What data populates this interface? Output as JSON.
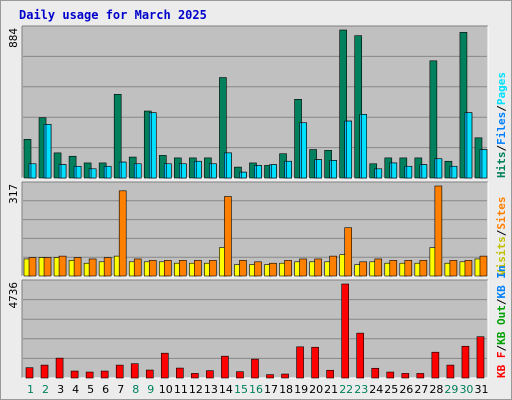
{
  "title": "Daily usage for March 2025",
  "colors": {
    "hits": "#00805c",
    "files": "#00c0ff",
    "pages": "#00e0ff",
    "visits": "#ffff00",
    "sites": "#ff8000",
    "kbin": "#0080ff",
    "kbout": "#00a000",
    "kbf": "#ff0000",
    "weekend": "#00805c",
    "weekday": "#000000",
    "panel_bg": "#c0c0c0"
  },
  "chart_data": [
    {
      "type": "bar",
      "panel": "top",
      "ymax_label": "884",
      "ylim": [
        0,
        884
      ],
      "categories": [
        "1",
        "2",
        "3",
        "4",
        "5",
        "6",
        "7",
        "8",
        "9",
        "10",
        "11",
        "12",
        "13",
        "14",
        "15",
        "16",
        "17",
        "18",
        "19",
        "20",
        "21",
        "22",
        "23",
        "24",
        "25",
        "26",
        "27",
        "28",
        "29",
        "30",
        "31"
      ],
      "weekend_days": [
        "1",
        "2",
        "8",
        "9",
        "15",
        "16",
        "22",
        "23",
        "29",
        "30"
      ],
      "legend": [
        {
          "text": "Hits",
          "color": "#00805c"
        },
        {
          "text": "/",
          "color": "#000000"
        },
        {
          "text": "Files",
          "color": "#0080ff"
        },
        {
          "text": "/",
          "color": "#000000"
        },
        {
          "text": "Pages",
          "color": "#00e0ff"
        }
      ],
      "series": [
        {
          "name": "Hits",
          "values": [
            231,
            360,
            150,
            130,
            90,
            90,
            500,
            125,
            400,
            135,
            120,
            120,
            120,
            600,
            65,
            90,
            75,
            145,
            470,
            170,
            165,
            884,
            850,
            85,
            120,
            120,
            120,
            700,
            100,
            870,
            240
          ]
        },
        {
          "name": "Files",
          "values": [
            85,
            320,
            80,
            70,
            55,
            70,
            95,
            85,
            390,
            85,
            85,
            100,
            85,
            150,
            35,
            75,
            80,
            100,
            330,
            110,
            105,
            340,
            380,
            55,
            90,
            70,
            80,
            115,
            70,
            390,
            170
          ]
        },
        {
          "name": "Pages",
          "values": [
            85,
            320,
            80,
            70,
            55,
            70,
            95,
            85,
            390,
            85,
            85,
            100,
            85,
            150,
            35,
            75,
            80,
            100,
            330,
            110,
            105,
            340,
            380,
            55,
            90,
            70,
            80,
            115,
            70,
            390,
            170
          ]
        }
      ]
    },
    {
      "type": "bar",
      "panel": "middle",
      "ymax_label": "317",
      "ylim": [
        0,
        317
      ],
      "legend": [
        {
          "text": "Visits",
          "color": "#c0c000"
        },
        {
          "text": "/",
          "color": "#000000"
        },
        {
          "text": "Sites",
          "color": "#ff8000"
        }
      ],
      "series": [
        {
          "name": "Visits",
          "values": [
            60,
            65,
            65,
            55,
            45,
            50,
            70,
            50,
            50,
            50,
            45,
            45,
            45,
            100,
            40,
            40,
            40,
            45,
            50,
            50,
            50,
            75,
            40,
            50,
            45,
            45,
            45,
            100,
            45,
            50,
            60
          ]
        },
        {
          "name": "Sites",
          "values": [
            65,
            65,
            70,
            65,
            60,
            65,
            300,
            60,
            55,
            55,
            55,
            55,
            55,
            280,
            55,
            50,
            45,
            55,
            60,
            60,
            70,
            170,
            50,
            60,
            55,
            55,
            55,
            317,
            55,
            55,
            70
          ]
        }
      ]
    },
    {
      "type": "bar",
      "panel": "bottom",
      "ymax_label": "4736",
      "ylim": [
        0,
        4736
      ],
      "legend": [
        {
          "text": "KB F",
          "color": "#ff0000"
        },
        {
          "text": "/",
          "color": "#000000"
        },
        {
          "text": "KB Out",
          "color": "#00a000"
        },
        {
          "text": "/",
          "color": "#000000"
        },
        {
          "text": "KB In",
          "color": "#0080ff"
        }
      ],
      "series": [
        {
          "name": "KB F",
          "values": [
            520,
            650,
            1000,
            350,
            300,
            350,
            650,
            720,
            400,
            1250,
            500,
            230,
            370,
            1100,
            320,
            950,
            170,
            200,
            1570,
            1550,
            390,
            4736,
            2260,
            490,
            300,
            230,
            230,
            1300,
            650,
            1600,
            2080
          ]
        }
      ]
    }
  ]
}
